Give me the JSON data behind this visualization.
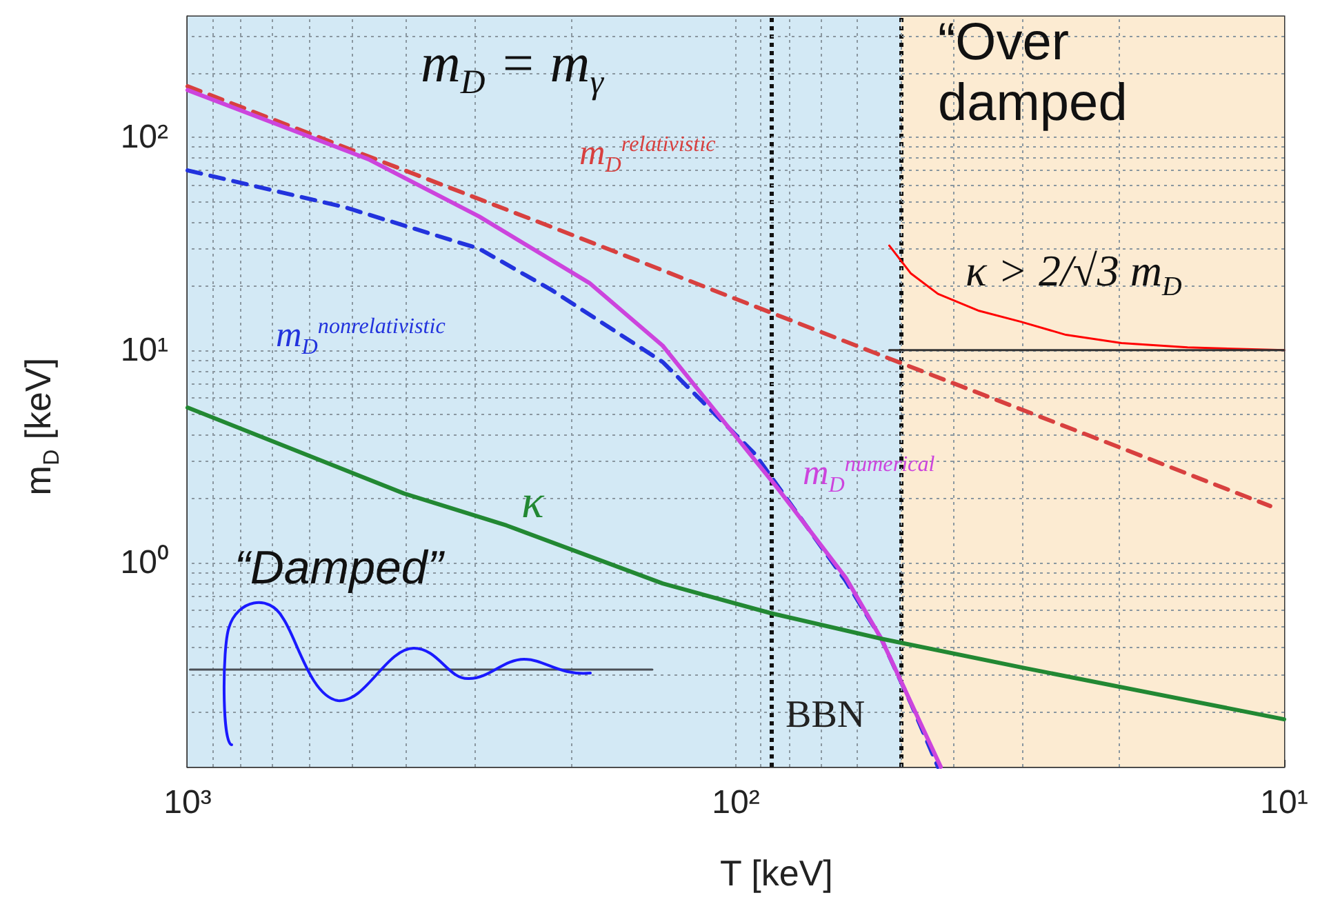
{
  "chart_data": {
    "type": "line",
    "xlabel": "T [keV]",
    "ylabel": "m$_{D}$ [keV]",
    "log": "xy",
    "grid": true,
    "marker": "none",
    "xlim": [
      1000,
      10
    ],
    "ylim": [
      0.11,
      370
    ],
    "xticks": [
      {
        "value": 1000,
        "label": "10³"
      },
      {
        "value": 900,
        "label": null
      },
      {
        "value": 800,
        "label": null
      },
      {
        "value": 700,
        "label": null
      },
      {
        "value": 600,
        "label": null
      },
      {
        "value": 500,
        "label": null
      },
      {
        "value": 400,
        "label": null
      },
      {
        "value": 300,
        "label": null
      },
      {
        "value": 200,
        "label": null
      },
      {
        "value": 100,
        "label": "10²"
      },
      {
        "value": 90,
        "label": null
      },
      {
        "value": 80,
        "label": null
      },
      {
        "value": 70,
        "label": null
      },
      {
        "value": 60,
        "label": null
      },
      {
        "value": 50,
        "label": null
      },
      {
        "value": 40,
        "label": null
      },
      {
        "value": 30,
        "label": null
      },
      {
        "value": 20,
        "label": null
      },
      {
        "value": 10,
        "label": "10¹"
      }
    ],
    "yticks": [
      {
        "value": 0.2,
        "label": null
      },
      {
        "value": 0.3,
        "label": null
      },
      {
        "value": 0.4,
        "label": null
      },
      {
        "value": 0.5,
        "label": null
      },
      {
        "value": 0.6,
        "label": null
      },
      {
        "value": 0.7,
        "label": null
      },
      {
        "value": 0.8,
        "label": null
      },
      {
        "value": 0.9,
        "label": null
      },
      {
        "value": 1,
        "label": "10⁰"
      },
      {
        "value": 2,
        "label": null
      },
      {
        "value": 3,
        "label": null
      },
      {
        "value": 4,
        "label": null
      },
      {
        "value": 5,
        "label": null
      },
      {
        "value": 6,
        "label": null
      },
      {
        "value": 7,
        "label": null
      },
      {
        "value": 8,
        "label": null
      },
      {
        "value": 9,
        "label": null
      },
      {
        "value": 10,
        "label": "10¹"
      },
      {
        "value": 20,
        "label": null
      },
      {
        "value": 30,
        "label": null
      },
      {
        "value": 40,
        "label": null
      },
      {
        "value": 50,
        "label": null
      },
      {
        "value": 60,
        "label": null
      },
      {
        "value": 70,
        "label": null
      },
      {
        "value": 80,
        "label": null
      },
      {
        "value": 90,
        "label": null
      },
      {
        "value": 100,
        "label": "10²"
      },
      {
        "value": 200,
        "label": null
      },
      {
        "value": 300,
        "label": null
      }
    ],
    "series": [
      {
        "name": "m$_{D}$$^{relativistic}$",
        "color": "#d8403f",
        "line_style": "dashed",
        "x": [
          1000,
          500,
          200,
          100,
          50,
          20,
          10.6
        ],
        "values": [
          174,
          87,
          35,
          17.4,
          8.7,
          3.5,
          1.85
        ]
      },
      {
        "name": "m$_{D}$$^{nonrelativistic}$",
        "color": "#2233dd",
        "line_style": "dashed",
        "x": [
          1000,
          517,
          294,
          217,
          136,
          92.5,
          63,
          54.3,
          48,
          42.8
        ],
        "values": [
          70,
          47,
          30,
          19.2,
          8.8,
          3.27,
          0.82,
          0.44,
          0.22,
          0.11
        ]
      },
      {
        "name": "m$_{D}$$^{numerical}$",
        "color": "#cc44dd",
        "line_style": "solid",
        "x": [
          1000,
          468,
          294,
          185,
          136,
          84,
          63,
          54.3,
          42.3
        ],
        "values": [
          167,
          79,
          42.5,
          20.7,
          10.5,
          2.25,
          0.85,
          0.44,
          0.11
        ]
      },
      {
        "name": "κ",
        "color": "#228833",
        "line_style": "solid",
        "x": [
          1000,
          403,
          262,
          136,
          86.3,
          54.3,
          29.7,
          10
        ],
        "values": [
          5.37,
          2.12,
          1.5,
          0.8,
          0.58,
          0.44,
          0.32,
          0.184
        ]
      },
      {
        "color": "#ff0000",
        "line_style": "solid",
        "x": [
          52.5,
          48,
          42.8,
          36,
          30.2,
          25,
          19.8,
          15,
          10
        ],
        "values": [
          31,
          23,
          18.4,
          15.3,
          13.6,
          11.8,
          10.8,
          10.3,
          10
        ]
      },
      {
        "color": "#333333",
        "line_style": "solid",
        "x": [
          52.5,
          10
        ],
        "values": [
          10,
          10
        ]
      },
      {
        "color": "#4a4f55",
        "line_style": "solid",
        "x": [
          990,
          142
        ],
        "values": [
          0.315,
          0.315
        ]
      }
    ],
    "ref_lines": [
      {
        "axis": "x",
        "value": 86,
        "label": "BBN",
        "line_style": "dotted",
        "color": "#111111"
      },
      {
        "axis": "x",
        "value": 50,
        "line_style": "dotted",
        "color": "#111111"
      }
    ],
    "bands": [
      {
        "axis": "x",
        "from": 1000,
        "to": 50,
        "color": "#d3e9f5"
      },
      {
        "axis": "x",
        "from": 50,
        "to": 10,
        "color": "#fcebd2"
      }
    ],
    "annotations": [
      "m$_{D}$ = m$_{γ}$",
      "“Over damped",
      "κ > 2/√3 m$_{D}$",
      "“Damped”"
    ]
  }
}
